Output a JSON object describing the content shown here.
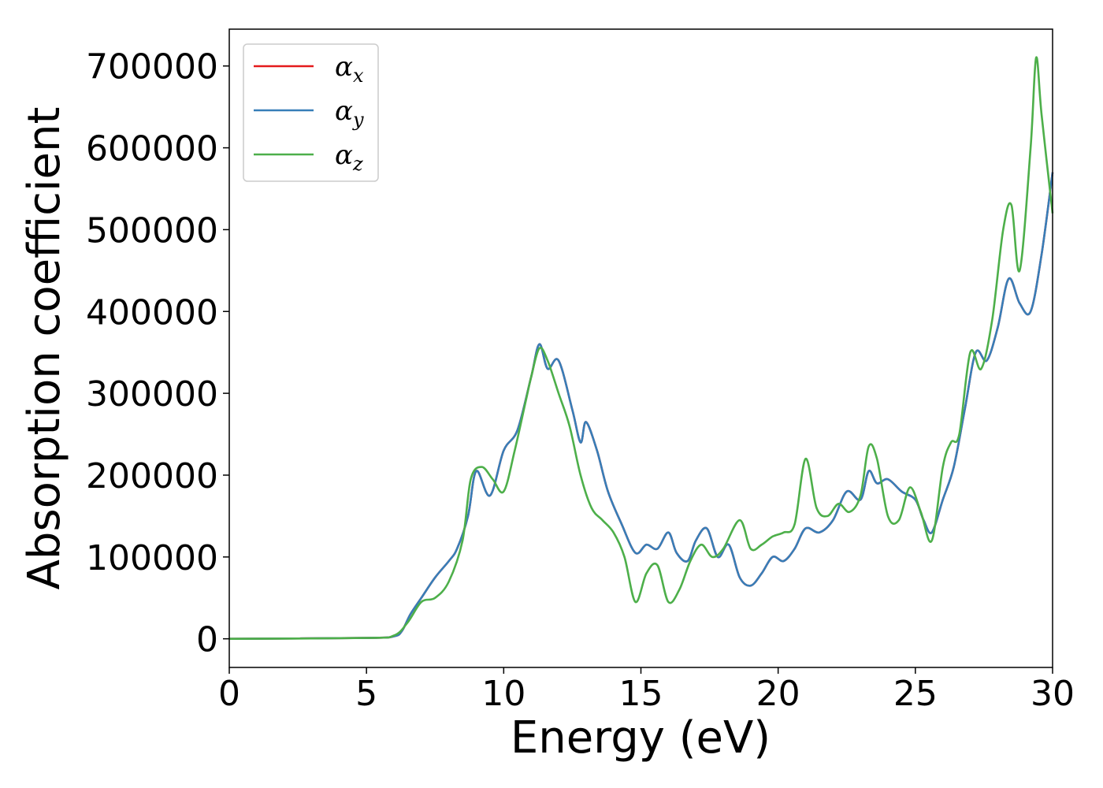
{
  "chart_data": {
    "type": "line",
    "xlabel": "Energy (eV)",
    "ylabel": "Absorption coefficient",
    "xlim": [
      0,
      30
    ],
    "ylim": [
      -35000,
      745000
    ],
    "xticks": [
      0,
      5,
      10,
      15,
      20,
      25,
      30
    ],
    "xtick_labels": [
      "0",
      "5",
      "10",
      "15",
      "20",
      "25",
      "30"
    ],
    "yticks": [
      0,
      100000,
      200000,
      300000,
      400000,
      500000,
      600000,
      700000
    ],
    "ytick_labels": [
      "0",
      "100000",
      "200000",
      "300000",
      "400000",
      "500000",
      "600000",
      "700000"
    ],
    "grid": false,
    "legend_position": "top-left",
    "series": [
      {
        "name": "α_x",
        "base": "α",
        "sub": "x",
        "color": "#e41a1c",
        "x": [
          0,
          5,
          6,
          6.3,
          6.6,
          7,
          7.5,
          8,
          8.3,
          8.7,
          9,
          9.5,
          10,
          10.5,
          11,
          11.3,
          11.6,
          12,
          12.5,
          12.8,
          13,
          13.4,
          13.8,
          14.3,
          14.8,
          15.2,
          15.6,
          16,
          16.3,
          16.7,
          17,
          17.4,
          17.8,
          18.2,
          18.6,
          19,
          19.4,
          19.8,
          20.2,
          20.6,
          21,
          21.5,
          22,
          22.5,
          23,
          23.3,
          23.6,
          24,
          24.5,
          25,
          25.3,
          25.6,
          26,
          26.4,
          26.8,
          27.2,
          27.6,
          28,
          28.4,
          28.8,
          29.2,
          29.6,
          30
        ],
        "y": [
          0,
          1000,
          3000,
          10000,
          30000,
          50000,
          75000,
          95000,
          110000,
          150000,
          205000,
          175000,
          230000,
          255000,
          320000,
          360000,
          330000,
          340000,
          280000,
          240000,
          265000,
          230000,
          180000,
          140000,
          105000,
          115000,
          110000,
          130000,
          105000,
          95000,
          120000,
          135000,
          100000,
          115000,
          75000,
          65000,
          80000,
          100000,
          95000,
          110000,
          135000,
          130000,
          145000,
          180000,
          170000,
          205000,
          190000,
          195000,
          180000,
          170000,
          145000,
          130000,
          170000,
          210000,
          280000,
          350000,
          340000,
          380000,
          440000,
          410000,
          400000,
          470000,
          570000
        ]
      },
      {
        "name": "α_y",
        "base": "α",
        "sub": "y",
        "color": "#377eb8",
        "x": [
          0,
          5,
          6,
          6.3,
          6.6,
          7,
          7.5,
          8,
          8.3,
          8.7,
          9,
          9.5,
          10,
          10.5,
          11,
          11.3,
          11.6,
          12,
          12.5,
          12.8,
          13,
          13.4,
          13.8,
          14.3,
          14.8,
          15.2,
          15.6,
          16,
          16.3,
          16.7,
          17,
          17.4,
          17.8,
          18.2,
          18.6,
          19,
          19.4,
          19.8,
          20.2,
          20.6,
          21,
          21.5,
          22,
          22.5,
          23,
          23.3,
          23.6,
          24,
          24.5,
          25,
          25.3,
          25.6,
          26,
          26.4,
          26.8,
          27.2,
          27.6,
          28,
          28.4,
          28.8,
          29.2,
          29.6,
          30
        ],
        "y": [
          0,
          1000,
          3000,
          10000,
          30000,
          50000,
          75000,
          95000,
          110000,
          150000,
          205000,
          175000,
          230000,
          255000,
          320000,
          360000,
          330000,
          340000,
          280000,
          240000,
          265000,
          230000,
          180000,
          140000,
          105000,
          115000,
          110000,
          130000,
          105000,
          95000,
          120000,
          135000,
          100000,
          115000,
          75000,
          65000,
          80000,
          100000,
          95000,
          110000,
          135000,
          130000,
          145000,
          180000,
          170000,
          205000,
          190000,
          195000,
          180000,
          170000,
          145000,
          130000,
          170000,
          210000,
          280000,
          350000,
          340000,
          380000,
          440000,
          410000,
          400000,
          470000,
          570000
        ]
      },
      {
        "name": "α_z",
        "base": "α",
        "sub": "z",
        "color": "#4daf4a",
        "x": [
          0,
          5,
          6,
          6.5,
          7,
          7.5,
          8,
          8.5,
          8.8,
          9.2,
          9.6,
          10,
          10.4,
          10.8,
          11,
          11.3,
          11.6,
          12,
          12.4,
          12.8,
          13.2,
          13.6,
          14,
          14.4,
          14.8,
          15.2,
          15.6,
          16,
          16.4,
          16.8,
          17.2,
          17.6,
          18,
          18.6,
          19,
          19.4,
          19.8,
          20.2,
          20.6,
          21,
          21.4,
          21.8,
          22.2,
          22.6,
          23,
          23.3,
          23.6,
          24,
          24.4,
          24.8,
          25.2,
          25.6,
          26,
          26.3,
          26.6,
          27,
          27.4,
          27.8,
          28.2,
          28.5,
          28.8,
          29.2,
          29.4,
          29.6,
          30
        ],
        "y": [
          0,
          1000,
          4000,
          20000,
          45000,
          50000,
          70000,
          120000,
          195000,
          210000,
          195000,
          180000,
          230000,
          290000,
          320000,
          355000,
          340000,
          300000,
          260000,
          200000,
          160000,
          145000,
          130000,
          100000,
          45000,
          80000,
          90000,
          45000,
          60000,
          95000,
          115000,
          100000,
          110000,
          145000,
          110000,
          115000,
          125000,
          130000,
          140000,
          220000,
          160000,
          150000,
          165000,
          155000,
          175000,
          235000,
          220000,
          150000,
          145000,
          185000,
          155000,
          120000,
          210000,
          240000,
          250000,
          350000,
          330000,
          390000,
          500000,
          530000,
          450000,
          600000,
          710000,
          640000,
          520000
        ]
      }
    ]
  }
}
